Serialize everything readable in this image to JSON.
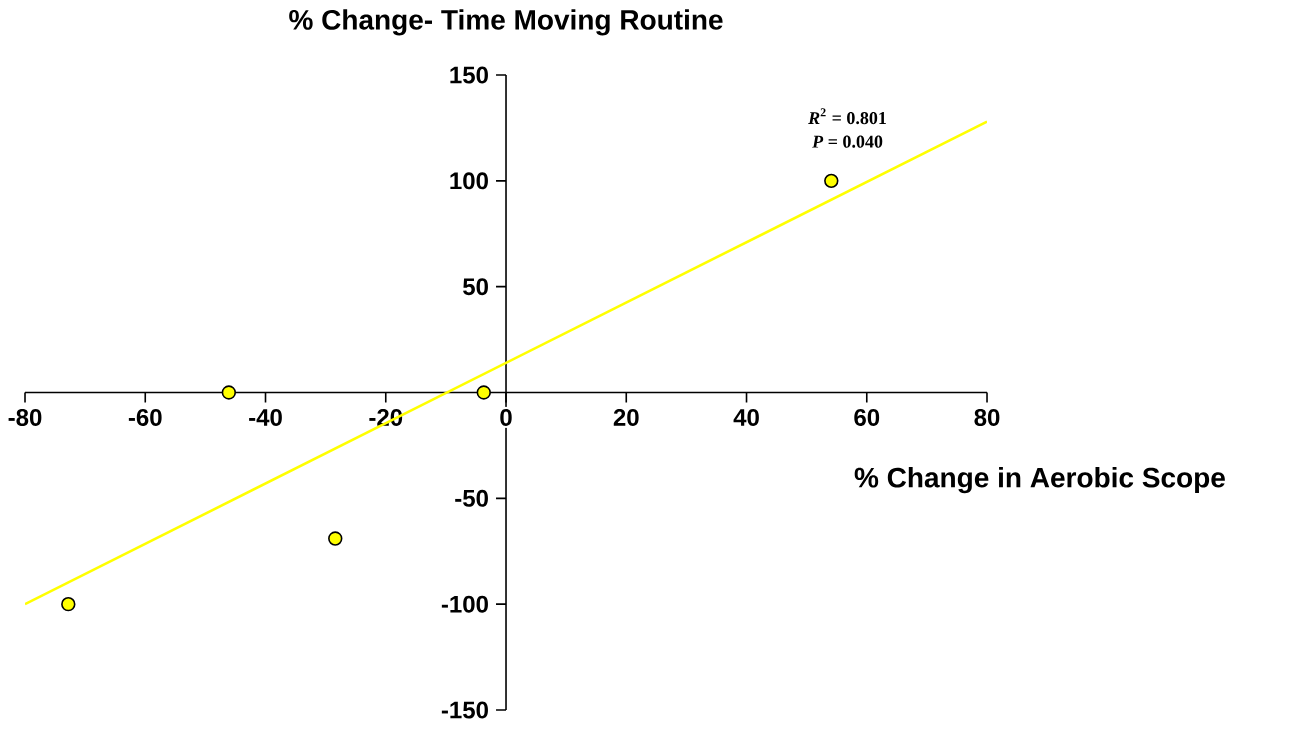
{
  "chart_data": {
    "type": "scatter",
    "xlabel": "% Change in Aerobic Scope",
    "ylabel": "% Change- Time Moving Routine",
    "annotations": [
      "*R*$^{2}$ = 0.801",
      "*P* = 0.040"
    ],
    "series": [
      {
        "color": "#ffff00",
        "marker": "circle",
        "x": [
          -72.8,
          -46.1,
          -28.4,
          -3.7,
          54.1
        ],
        "values": [
          -100,
          0,
          -69,
          0,
          100
        ]
      },
      {
        "type": "line",
        "color": "#ffff00",
        "marker": "none",
        "x": [
          -80,
          80
        ],
        "values": [
          -100,
          128
        ]
      }
    ],
    "xlim": [
      -80,
      80
    ],
    "ylim": [
      -150,
      150
    ],
    "xticks": [
      -80,
      -60,
      -40,
      -20,
      0,
      20,
      40,
      60,
      80
    ],
    "yticks": [
      -150,
      -100,
      -50,
      50,
      100,
      150
    ],
    "grid": false
  }
}
